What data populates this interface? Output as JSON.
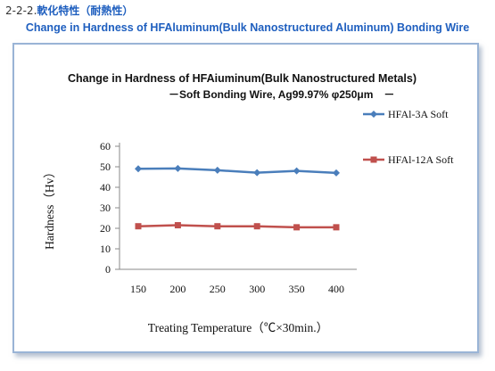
{
  "header": {
    "section_number": "2-2-2.",
    "section_title_jp": "軟化特性（耐熱性）",
    "subtitle": "Change in Hardness of HFAluminum(Bulk Nanostructured Aluminum) Bonding Wire"
  },
  "chart_data": {
    "type": "line",
    "title": "Change in Hardness of HFAiuminum(Bulk Nanostructured Metals)",
    "subtitle": "－Soft Bonding Wire, Ag99.97% φ250μm　－",
    "xlabel": "Treating Temperature（℃×30min.）",
    "ylabel": "Hardness（Hv）",
    "x": [
      "150",
      "200",
      "250",
      "300",
      "350",
      "400"
    ],
    "yticks": [
      "0",
      "10",
      "20",
      "30",
      "40",
      "50",
      "60"
    ],
    "ylim": [
      0,
      60
    ],
    "grid": false,
    "legend_position": "right",
    "series": [
      {
        "name": "HFAl-3A Soft",
        "color": "#4a7ebb",
        "marker": "diamond",
        "values": [
          49,
          49.2,
          48.3,
          47.1,
          48,
          47
        ]
      },
      {
        "name": "HFAl-12A Soft",
        "color": "#c0504d",
        "marker": "square",
        "values": [
          21,
          21.5,
          21,
          21,
          20.5,
          20.5
        ]
      }
    ]
  }
}
